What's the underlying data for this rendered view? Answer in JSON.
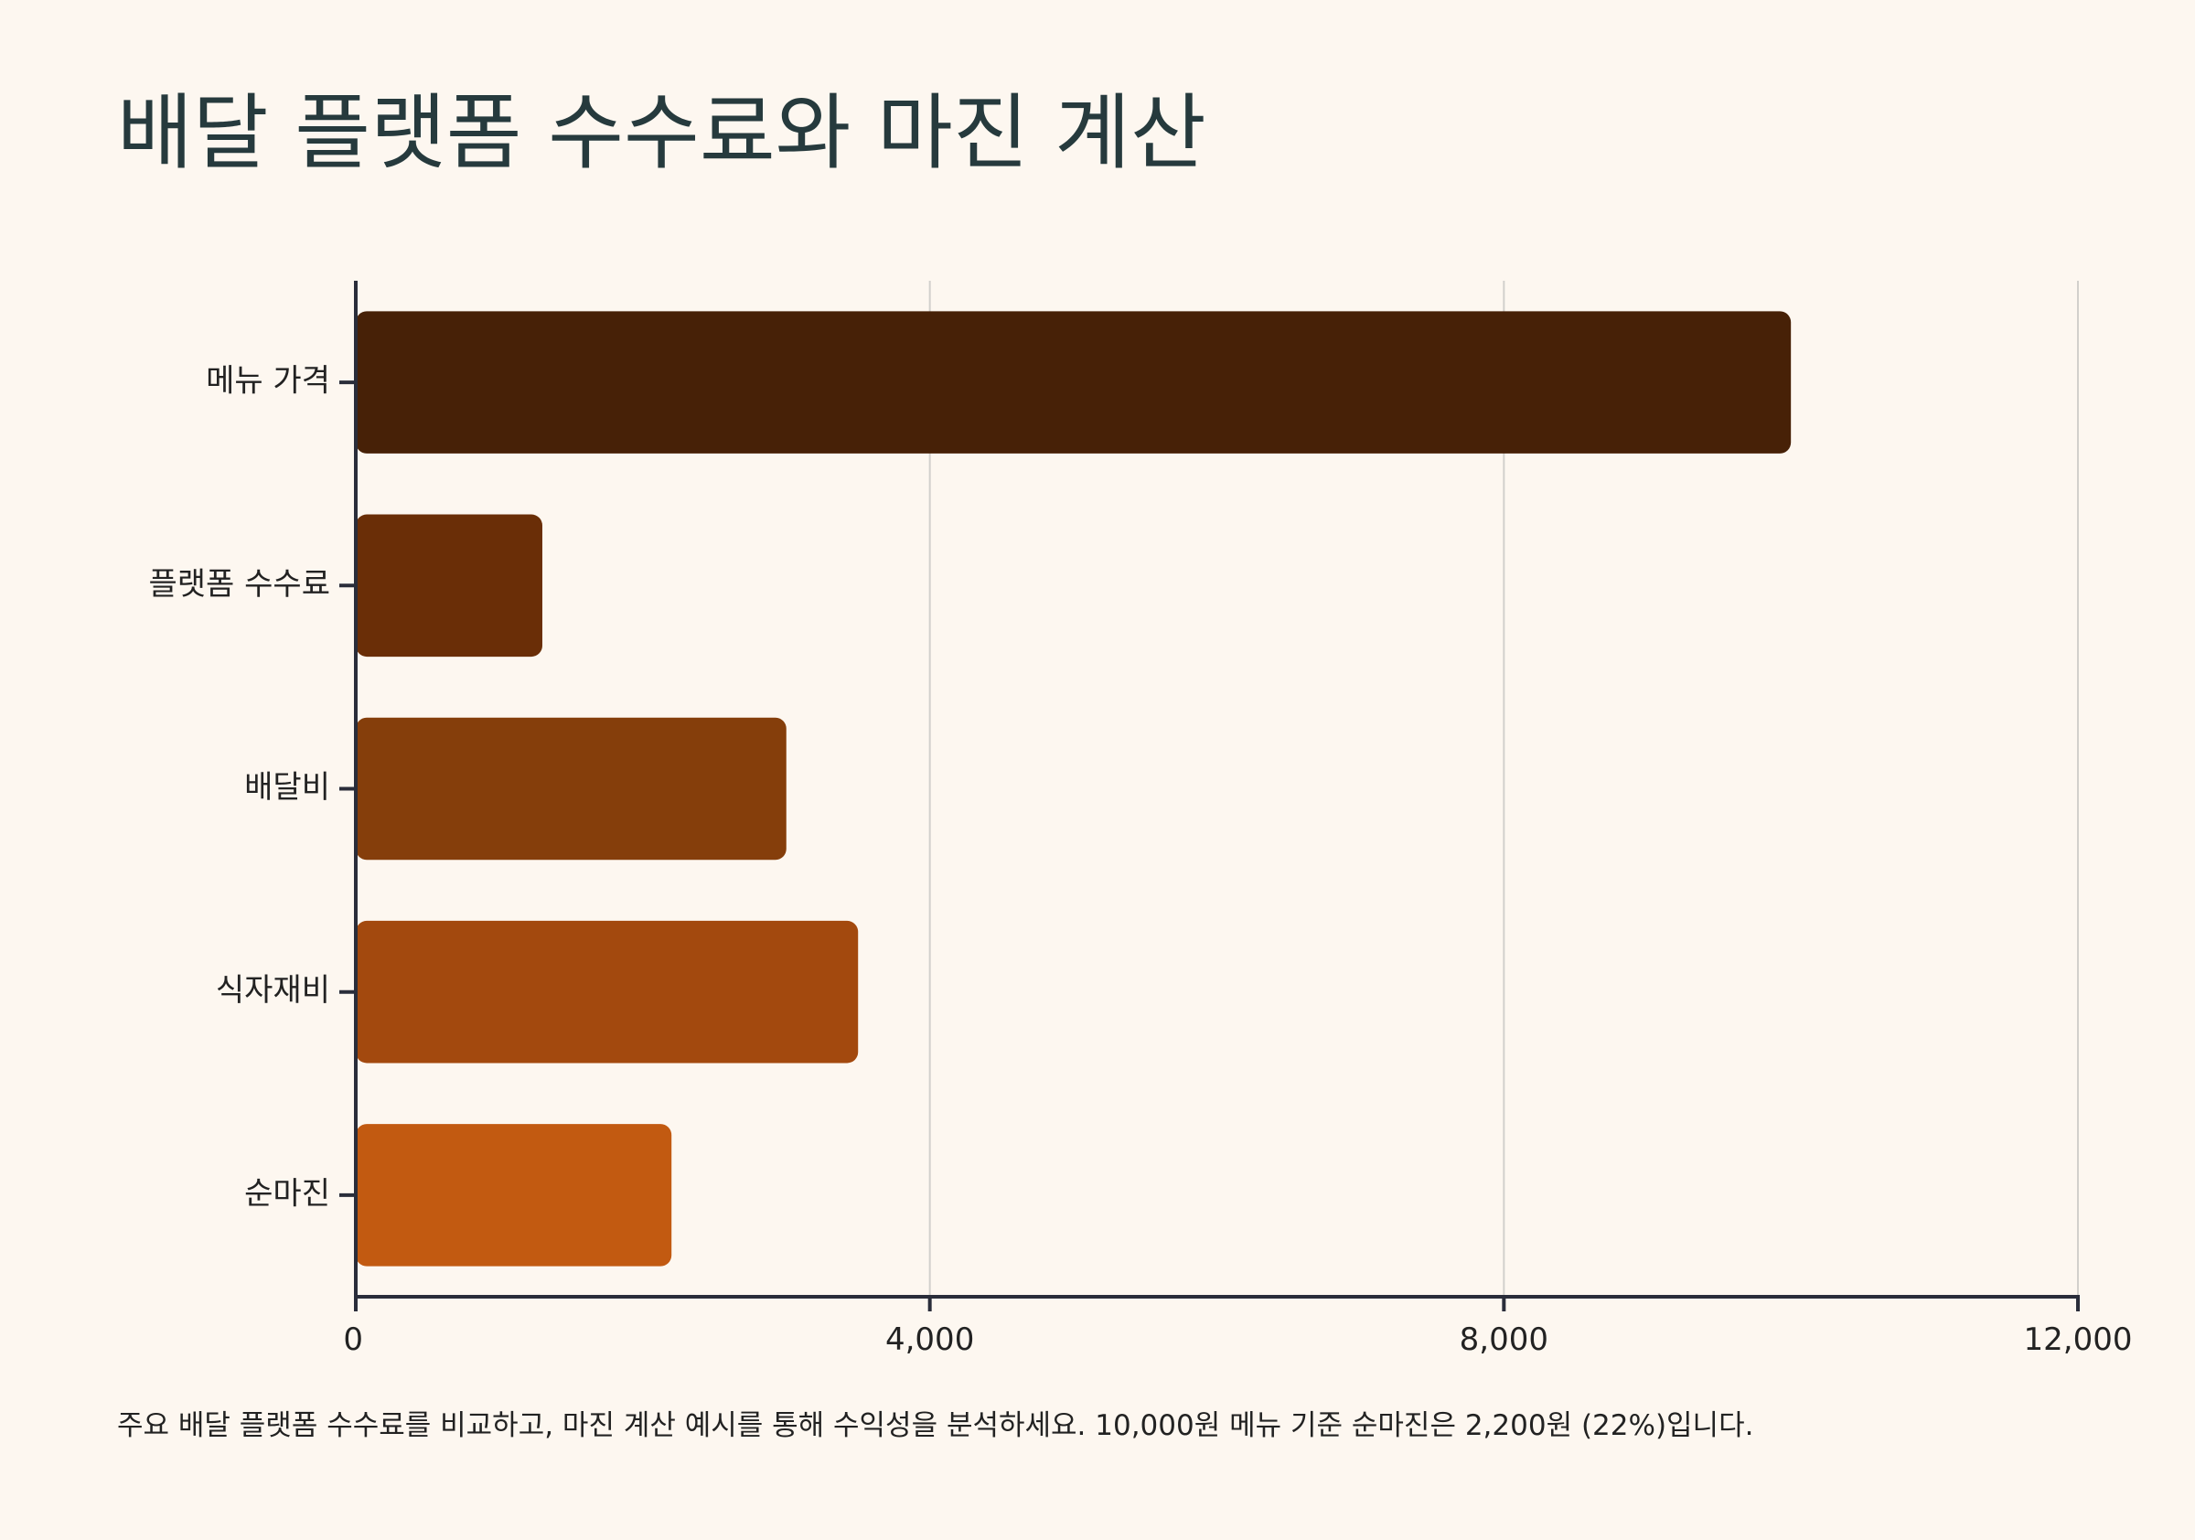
{
  "chart_data": {
    "type": "bar",
    "orientation": "horizontal",
    "title": "배달 플랫폼 수수료와 마진 계산",
    "categories": [
      "메뉴 가격",
      "플랫폼 수수료",
      "배달비",
      "식자재비",
      "순마진"
    ],
    "values": [
      10000,
      1300,
      3000,
      3500,
      2200
    ],
    "colors": [
      "#472107",
      "#6a2e07",
      "#853e0b",
      "#a3490e",
      "#c25a11"
    ],
    "xlim": [
      0,
      12000
    ],
    "xticks": [
      0,
      4000,
      8000,
      12000
    ],
    "xtick_labels": [
      "0",
      "4,000",
      "8,000",
      "12,000"
    ],
    "xlabel": "",
    "ylabel": "",
    "grid": "vertical",
    "legend": "none"
  },
  "caption": "주요 배달 플랫폼 수수료를 비교하고, 마진 계산 예시를 통해 수익성을 분석하세요. 10,000원 메뉴 기준 순마진은 2,200원 (22%)입니다."
}
